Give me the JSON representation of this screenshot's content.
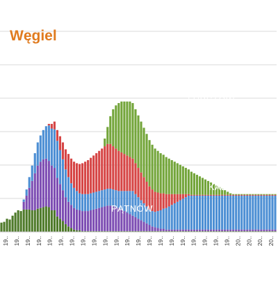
{
  "chart_data": {
    "type": "bar",
    "stacked": true,
    "title": "Węgiel",
    "xlabel": "",
    "ylabel": "",
    "grid": true,
    "legend": "none",
    "x_tick_labels": [
      "19..",
      "19..",
      "19..",
      "19..",
      "19..",
      "19..",
      "19..",
      "19..",
      "19..",
      "19..",
      "19..",
      "19..",
      "19..",
      "19..",
      "19..",
      "19..",
      "19..",
      "19..",
      "19..",
      "19..",
      "19..",
      "20..",
      "20..",
      "20..",
      "20.."
    ],
    "annotations": [
      {
        "text": "LUBSTÓW",
        "series": "LUBSTÓW"
      },
      {
        "text": "KAZIMIERZ",
        "series": "KAZIMIERZ"
      },
      {
        "text": "PĄTNÓW",
        "series": "PĄTNÓW"
      }
    ],
    "colors": {
      "dark_green": "#4e7a2a",
      "patnow": "#7d4db3",
      "kazimierz": "#4d8fd4",
      "red": "#d64545",
      "lubstow": "#73a53a",
      "orange": "#f2a51f",
      "title": "#e07b1f"
    },
    "series": [
      {
        "name": "",
        "color": "#4e7a2a",
        "values": [
          12,
          13,
          17,
          16,
          21,
          25,
          28,
          27,
          29,
          29,
          29,
          28,
          28,
          30,
          31,
          32,
          33,
          32,
          28,
          28,
          20,
          17,
          14,
          10,
          7,
          5,
          3,
          2,
          2,
          1,
          1,
          1,
          1,
          1,
          1,
          1,
          1,
          1,
          1,
          1,
          1,
          1,
          1,
          1,
          1,
          1,
          1,
          1,
          1,
          1,
          1,
          1,
          1,
          1,
          1,
          1,
          1,
          1,
          1,
          1,
          1,
          1,
          1,
          1,
          1,
          1,
          1,
          1,
          1,
          1,
          1,
          1,
          1,
          1,
          1,
          1,
          1,
          1,
          1,
          1,
          1,
          1,
          1,
          1,
          1,
          1,
          1,
          1,
          1,
          1,
          1,
          1,
          1,
          1,
          1,
          1,
          1,
          1,
          1
        ]
      },
      {
        "name": "PĄTNÓW",
        "color": "#7d4db3",
        "values": [
          0,
          0,
          0,
          0,
          0,
          0,
          0,
          0,
          10,
          18,
          28,
          38,
          48,
          56,
          60,
          62,
          62,
          60,
          58,
          55,
          50,
          45,
          40,
          35,
          32,
          30,
          28,
          27,
          26,
          26,
          26,
          26,
          27,
          28,
          29,
          30,
          31,
          32,
          33,
          33,
          32,
          31,
          30,
          28,
          26,
          24,
          22,
          20,
          18,
          16,
          14,
          12,
          10,
          8,
          6,
          5,
          4,
          3,
          3,
          2,
          2,
          2,
          2,
          2,
          2,
          2,
          2,
          2,
          2,
          2,
          2,
          2,
          2,
          2,
          2,
          2,
          2,
          2,
          2,
          2,
          2,
          2,
          2,
          2,
          2,
          2,
          2,
          2,
          2,
          2,
          2,
          2,
          2,
          2,
          2,
          2,
          2,
          2,
          2
        ]
      },
      {
        "name": "KAZIMIERZ",
        "color": "#4d8fd4",
        "values": [
          0,
          0,
          0,
          0,
          0,
          0,
          0,
          0,
          3,
          8,
          14,
          20,
          26,
          30,
          34,
          38,
          42,
          46,
          48,
          50,
          48,
          44,
          40,
          36,
          32,
          28,
          26,
          24,
          22,
          22,
          22,
          22,
          22,
          22,
          22,
          22,
          22,
          22,
          22,
          22,
          22,
          22,
          22,
          24,
          26,
          28,
          30,
          32,
          30,
          28,
          26,
          24,
          22,
          20,
          20,
          20,
          22,
          24,
          26,
          28,
          30,
          32,
          34,
          36,
          38,
          40,
          42,
          44,
          44,
          44,
          44,
          44,
          44,
          44,
          44,
          44,
          44,
          44,
          44,
          44,
          44,
          44,
          44,
          44,
          44,
          44,
          44,
          44,
          44,
          44,
          44,
          44,
          44,
          44,
          44,
          44,
          44,
          44,
          44
        ]
      },
      {
        "name": "",
        "color": "#d64545",
        "values": [
          0,
          0,
          0,
          0,
          0,
          0,
          0,
          0,
          0,
          0,
          0,
          0,
          0,
          0,
          0,
          0,
          0,
          2,
          6,
          10,
          14,
          18,
          22,
          26,
          30,
          32,
          34,
          36,
          38,
          40,
          42,
          44,
          46,
          48,
          50,
          52,
          54,
          56,
          58,
          58,
          56,
          54,
          52,
          50,
          48,
          46,
          44,
          42,
          40,
          38,
          36,
          34,
          32,
          30,
          28,
          26,
          24,
          22,
          20,
          18,
          16,
          14,
          12,
          10,
          8,
          6,
          4,
          2,
          1,
          1,
          1,
          1,
          1,
          1,
          1,
          1,
          1,
          1,
          1,
          1,
          1,
          1,
          1,
          1,
          1,
          1,
          1,
          1,
          1,
          1,
          1,
          1,
          1,
          1,
          1,
          1,
          1,
          1,
          1
        ]
      },
      {
        "name": "LUBSTÓW",
        "color": "#73a53a",
        "values": [
          0,
          0,
          0,
          0,
          0,
          0,
          0,
          0,
          0,
          0,
          0,
          0,
          0,
          0,
          0,
          0,
          0,
          0,
          0,
          0,
          0,
          0,
          0,
          0,
          0,
          0,
          0,
          0,
          0,
          0,
          0,
          0,
          0,
          0,
          0,
          0,
          0,
          10,
          22,
          36,
          48,
          56,
          62,
          66,
          68,
          70,
          72,
          72,
          70,
          68,
          66,
          64,
          62,
          60,
          58,
          56,
          54,
          52,
          50,
          48,
          46,
          44,
          42,
          40,
          38,
          36,
          34,
          32,
          30,
          28,
          26,
          24,
          22,
          20,
          18,
          16,
          14,
          12,
          10,
          8,
          6,
          4,
          2,
          1,
          1,
          1,
          1,
          1,
          1,
          1,
          1,
          1,
          1,
          1,
          1,
          1,
          1,
          1,
          1
        ]
      },
      {
        "name": "",
        "color": "#f2a51f",
        "values": [
          0,
          0,
          0,
          0,
          0,
          0,
          0,
          0,
          0,
          0,
          0,
          0,
          0,
          0,
          0,
          0,
          0,
          0,
          0,
          0,
          0,
          0,
          0,
          0,
          0,
          0,
          0,
          0,
          0,
          0,
          0,
          0,
          0,
          0,
          0,
          0,
          0,
          0,
          0,
          0,
          0,
          0,
          0,
          0,
          0,
          0,
          0,
          0,
          0,
          0,
          0,
          0,
          0,
          0,
          0,
          0,
          0,
          0,
          0,
          0,
          0,
          0,
          0,
          0,
          0,
          0,
          0,
          0,
          0,
          0,
          0,
          0,
          0,
          0,
          0,
          0,
          0,
          0,
          0,
          0,
          0,
          0,
          0,
          0,
          0,
          0,
          0,
          0,
          0,
          0,
          0,
          0,
          0,
          0,
          0,
          0,
          0,
          0,
          0
        ]
      }
    ],
    "ylim": [
      0,
      260
    ]
  }
}
